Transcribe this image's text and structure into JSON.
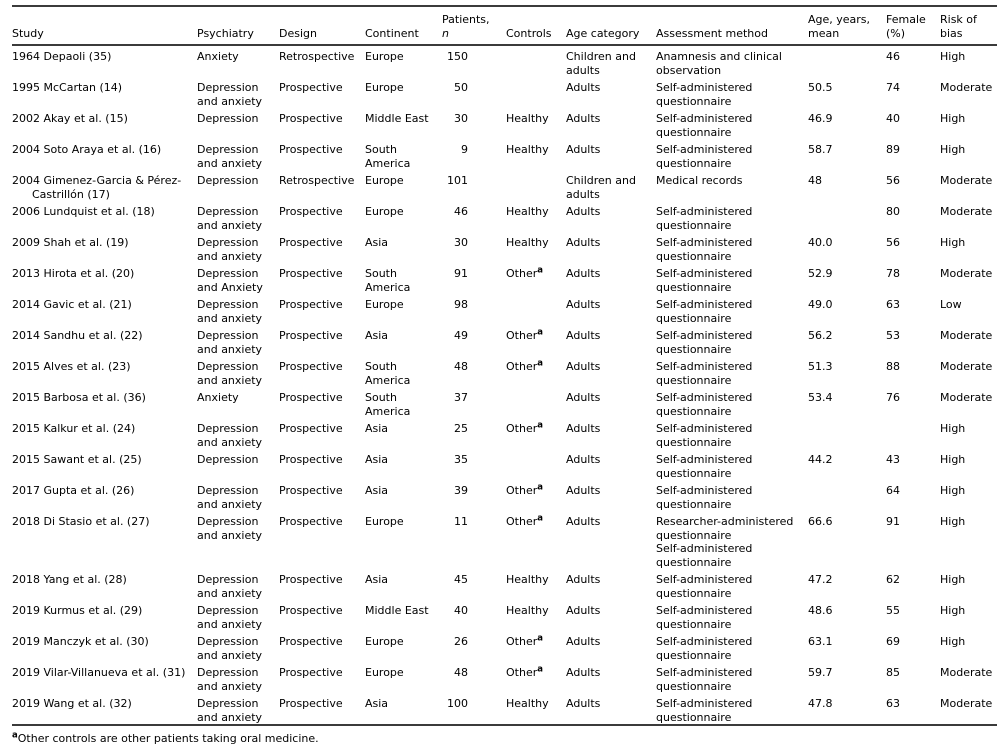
{
  "page": {
    "background_color": "#ffffff",
    "text_color": "#000000",
    "rule_color": "#3b3b3b"
  },
  "table": {
    "columns": [
      {
        "label": "Study"
      },
      {
        "label": "Psychiatry"
      },
      {
        "label": "Design"
      },
      {
        "label": "Continent"
      },
      {
        "label": "Patients,",
        "sub": "n"
      },
      {
        "label": "Controls"
      },
      {
        "label": "Age category"
      },
      {
        "label": "Assessment method"
      },
      {
        "label": "Age, years,",
        "sub": "mean"
      },
      {
        "label": "Female",
        "sub": "(%)"
      },
      {
        "label": "Risk of",
        "sub": "bias"
      }
    ],
    "rows": [
      {
        "study": "1964 Depaoli (35)",
        "psychiatry": "Anxiety",
        "design": "Retrospective",
        "continent": "Europe",
        "patients_n": "150",
        "controls": "",
        "age_category": "Children and adults",
        "assessment_method": "Anamnesis and clinical observation",
        "age_mean": "",
        "female_pct": "46",
        "risk_of_bias": "High"
      },
      {
        "study": "1995 McCartan (14)",
        "psychiatry": "Depression and anxiety",
        "design": "Prospective",
        "continent": "Europe",
        "patients_n": "50",
        "controls": "",
        "age_category": "Adults",
        "assessment_method": "Self-administered questionnaire",
        "age_mean": "50.5",
        "female_pct": "74",
        "risk_of_bias": "Moderate"
      },
      {
        "study": "2002 Akay et al. (15)",
        "psychiatry": "Depression",
        "design": "Prospective",
        "continent": "Middle East",
        "patients_n": "30",
        "controls": "Healthy",
        "age_category": "Adults",
        "assessment_method": "Self-administered questionnaire",
        "age_mean": "46.9",
        "female_pct": "40",
        "risk_of_bias": "High"
      },
      {
        "study": "2004 Soto Araya et al. (16)",
        "psychiatry": "Depression and anxiety",
        "design": "Prospective",
        "continent": "South America",
        "patients_n": "9",
        "controls": "Healthy",
        "age_category": "Adults",
        "assessment_method": "Self-administered questionnaire",
        "age_mean": "58.7",
        "female_pct": "89",
        "risk_of_bias": "High"
      },
      {
        "study": "2004 Gimenez-Garcia & Pérez-\nCastrillón (17)",
        "psychiatry": "Depression",
        "design": "Retrospective",
        "continent": "Europe",
        "patients_n": "101",
        "controls": "",
        "age_category": "Children and adults",
        "assessment_method": "Medical records",
        "age_mean": "48",
        "female_pct": "56",
        "risk_of_bias": "Moderate"
      },
      {
        "study": "2006 Lundquist et al. (18)",
        "psychiatry": "Depression and anxiety",
        "design": "Prospective",
        "continent": "Europe",
        "patients_n": "46",
        "controls": "Healthy",
        "age_category": "Adults",
        "assessment_method": "Self-administered questionnaire",
        "age_mean": "",
        "female_pct": "80",
        "risk_of_bias": "Moderate"
      },
      {
        "study": "2009 Shah et al. (19)",
        "psychiatry": "Depression and anxiety",
        "design": "Prospective",
        "continent": "Asia",
        "patients_n": "30",
        "controls": "Healthy",
        "age_category": "Adults",
        "assessment_method": "Self-administered questionnaire",
        "age_mean": "40.0",
        "female_pct": "56",
        "risk_of_bias": "High"
      },
      {
        "study": "2013 Hirota et al. (20)",
        "psychiatry": "Depression and Anxiety",
        "design": "Prospective",
        "continent": "South America",
        "patients_n": "91",
        "controls": "Other",
        "controls_sup": "a",
        "age_category": "Adults",
        "assessment_method": "Self-administered questionnaire",
        "age_mean": "52.9",
        "female_pct": "78",
        "risk_of_bias": "Moderate"
      },
      {
        "study": "2014 Gavic et al. (21)",
        "psychiatry": "Depression and anxiety",
        "design": "Prospective",
        "continent": "Europe",
        "patients_n": "98",
        "controls": "",
        "age_category": "Adults",
        "assessment_method": "Self-administered questionnaire",
        "age_mean": "49.0",
        "female_pct": "63",
        "risk_of_bias": "Low"
      },
      {
        "study": "2014 Sandhu et al. (22)",
        "psychiatry": "Depression and anxiety",
        "design": "Prospective",
        "continent": "Asia",
        "patients_n": "49",
        "controls": "Other",
        "controls_sup": "a",
        "age_category": "Adults",
        "assessment_method": "Self-administered questionnaire",
        "age_mean": "56.2",
        "female_pct": "53",
        "risk_of_bias": "Moderate"
      },
      {
        "study": "2015 Alves et al. (23)",
        "psychiatry": "Depression and anxiety",
        "design": "Prospective",
        "continent": "South America",
        "patients_n": "48",
        "controls": "Other",
        "controls_sup": "a",
        "age_category": "Adults",
        "assessment_method": "Self-administered questionnaire",
        "age_mean": "51.3",
        "female_pct": "88",
        "risk_of_bias": "Moderate"
      },
      {
        "study": "2015 Barbosa et al. (36)",
        "psychiatry": "Anxiety",
        "design": "Prospective",
        "continent": "South America",
        "patients_n": "37",
        "controls": "",
        "age_category": "Adults",
        "assessment_method": "Self-administered questionnaire",
        "age_mean": "53.4",
        "female_pct": "76",
        "risk_of_bias": "Moderate"
      },
      {
        "study": "2015 Kalkur et al. (24)",
        "psychiatry": "Depression and anxiety",
        "design": "Prospective",
        "continent": "Asia",
        "patients_n": "25",
        "controls": "Other",
        "controls_sup": "a",
        "age_category": "Adults",
        "assessment_method": "Self-administered questionnaire",
        "age_mean": "",
        "female_pct": "",
        "risk_of_bias": "High"
      },
      {
        "study": "2015 Sawant et al. (25)",
        "psychiatry": "Depression",
        "design": "Prospective",
        "continent": "Asia",
        "patients_n": "35",
        "controls": "",
        "age_category": "Adults",
        "assessment_method": "Self-administered questionnaire",
        "age_mean": "44.2",
        "female_pct": "43",
        "risk_of_bias": "High"
      },
      {
        "study": "2017 Gupta et al. (26)",
        "psychiatry": "Depression and anxiety",
        "design": "Prospective",
        "continent": "Asia",
        "patients_n": "39",
        "controls": "Other",
        "controls_sup": "a",
        "age_category": "Adults",
        "assessment_method": "Self-administered questionnaire",
        "age_mean": "",
        "female_pct": "64",
        "risk_of_bias": "High"
      },
      {
        "study": "2018 Di Stasio et al. (27)",
        "psychiatry": "Depression and anxiety",
        "design": "Prospective",
        "continent": "Europe",
        "patients_n": "11",
        "controls": "Other",
        "controls_sup": "a",
        "age_category": "Adults",
        "assessment_method": "Researcher-administered questionnaire\nSelf-administered questionnaire",
        "age_mean": "66.6",
        "female_pct": "91",
        "risk_of_bias": "High"
      },
      {
        "study": "2018 Yang et al. (28)",
        "psychiatry": "Depression and anxiety",
        "design": "Prospective",
        "continent": "Asia",
        "patients_n": "45",
        "controls": "Healthy",
        "age_category": "Adults",
        "assessment_method": "Self-administered questionnaire",
        "age_mean": "47.2",
        "female_pct": "62",
        "risk_of_bias": "High"
      },
      {
        "study": "2019 Kurmus et al. (29)",
        "psychiatry": "Depression and anxiety",
        "design": "Prospective",
        "continent": "Middle East",
        "patients_n": "40",
        "controls": "Healthy",
        "age_category": "Adults",
        "assessment_method": "Self-administered questionnaire",
        "age_mean": "48.6",
        "female_pct": "55",
        "risk_of_bias": "High"
      },
      {
        "study": "2019 Manczyk et al. (30)",
        "psychiatry": "Depression and anxiety",
        "design": "Prospective",
        "continent": "Europe",
        "patients_n": "26",
        "controls": "Other",
        "controls_sup": "a",
        "age_category": "Adults",
        "assessment_method": "Self-administered questionnaire",
        "age_mean": "63.1",
        "female_pct": "69",
        "risk_of_bias": "High"
      },
      {
        "study": "2019 Vilar-Villanueva et al. (31)",
        "psychiatry": "Depression and anxiety",
        "design": "Prospective",
        "continent": "Europe",
        "patients_n": "48",
        "controls": "Other",
        "controls_sup": "a",
        "age_category": "Adults",
        "assessment_method": "Self-administered questionnaire",
        "age_mean": "59.7",
        "female_pct": "85",
        "risk_of_bias": "Moderate"
      },
      {
        "study": "2019 Wang et al. (32)",
        "psychiatry": "Depression and anxiety",
        "design": "Prospective",
        "continent": "Asia",
        "patients_n": "100",
        "controls": "Healthy",
        "age_category": "Adults",
        "assessment_method": "Self-administered questionnaire",
        "age_mean": "47.8",
        "female_pct": "63",
        "risk_of_bias": "Moderate"
      }
    ],
    "footnote": {
      "marker": "a",
      "text": "Other controls are other patients taking oral medicine."
    }
  }
}
